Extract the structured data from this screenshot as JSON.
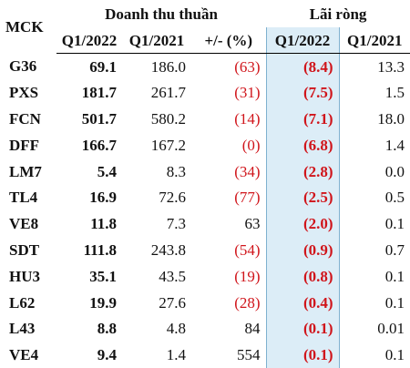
{
  "header": {
    "mck": "MCK",
    "group_revenue": "Doanh thu thuần",
    "group_profit": "Lãi ròng",
    "columns": [
      "Q1/2022",
      "Q1/2021",
      "+/- (%)",
      "Q1/2022",
      "Q1/2021"
    ]
  },
  "rows": [
    {
      "mck": "G36",
      "rev_2022": "69.1",
      "rev_2021": "186.0",
      "change": "(63)",
      "profit_2022": "(8.4)",
      "profit_2021": "13.3"
    },
    {
      "mck": "PXS",
      "rev_2022": "181.7",
      "rev_2021": "261.7",
      "change": "(31)",
      "profit_2022": "(7.5)",
      "profit_2021": "1.5"
    },
    {
      "mck": "FCN",
      "rev_2022": "501.7",
      "rev_2021": "580.2",
      "change": "(14)",
      "profit_2022": "(7.1)",
      "profit_2021": "18.0"
    },
    {
      "mck": "DFF",
      "rev_2022": "166.7",
      "rev_2021": "167.2",
      "change": "(0)",
      "profit_2022": "(6.8)",
      "profit_2021": "1.4"
    },
    {
      "mck": "LM7",
      "rev_2022": "5.4",
      "rev_2021": "8.3",
      "change": "(34)",
      "profit_2022": "(2.8)",
      "profit_2021": "0.0"
    },
    {
      "mck": "TL4",
      "rev_2022": "16.9",
      "rev_2021": "72.6",
      "change": "(77)",
      "profit_2022": "(2.5)",
      "profit_2021": "0.5"
    },
    {
      "mck": "VE8",
      "rev_2022": "11.8",
      "rev_2021": "7.3",
      "change": "63",
      "profit_2022": "(2.0)",
      "profit_2021": "0.1"
    },
    {
      "mck": "SDT",
      "rev_2022": "111.8",
      "rev_2021": "243.8",
      "change": "(54)",
      "profit_2022": "(0.9)",
      "profit_2021": "0.7"
    },
    {
      "mck": "HU3",
      "rev_2022": "35.1",
      "rev_2021": "43.5",
      "change": "(19)",
      "profit_2022": "(0.8)",
      "profit_2021": "0.1"
    },
    {
      "mck": "L62",
      "rev_2022": "19.9",
      "rev_2021": "27.6",
      "change": "(28)",
      "profit_2022": "(0.4)",
      "profit_2021": "0.1"
    },
    {
      "mck": "L43",
      "rev_2022": "8.8",
      "rev_2021": "4.8",
      "change": "84",
      "profit_2022": "(0.1)",
      "profit_2021": "0.01"
    },
    {
      "mck": "VE4",
      "rev_2022": "9.4",
      "rev_2021": "1.4",
      "change": "554",
      "profit_2022": "(0.1)",
      "profit_2021": "0.1"
    }
  ],
  "colors": {
    "negative": "#d0151b",
    "highlight": "#dcedf7"
  }
}
